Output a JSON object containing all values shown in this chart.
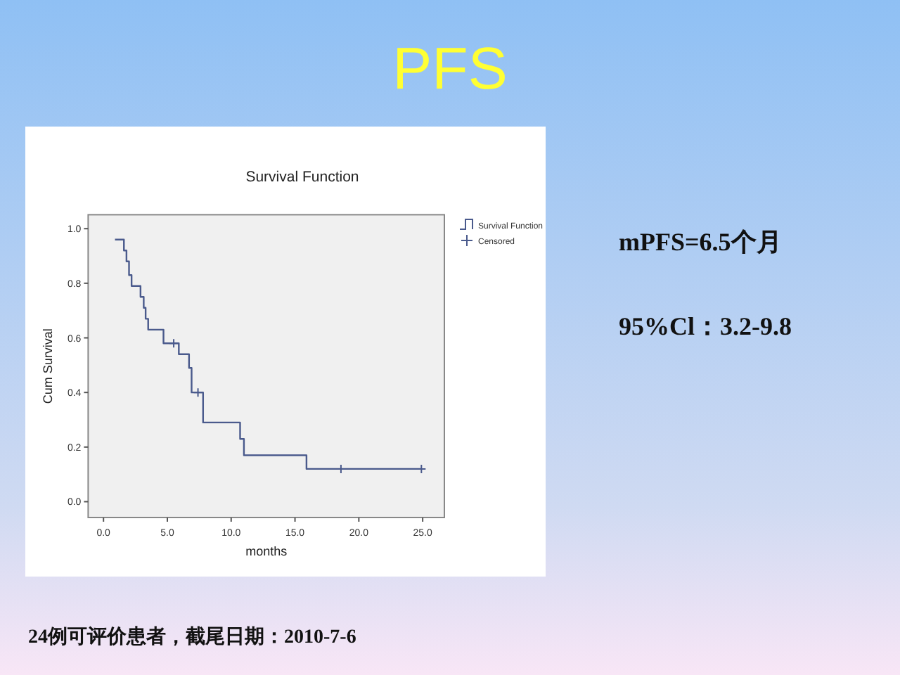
{
  "chart_data": {
    "type": "step",
    "title": "PFS",
    "subtitle": "Survival Function",
    "xlabel": "months",
    "ylabel": "Cum Survival",
    "xlim": [
      -1.2,
      26.7
    ],
    "ylim": [
      -0.058,
      1.051
    ],
    "xticks": [
      {
        "value": 0,
        "label": "0.0"
      },
      {
        "value": 5,
        "label": "5.0"
      },
      {
        "value": 10,
        "label": "10.0"
      },
      {
        "value": 15,
        "label": "15.0"
      },
      {
        "value": 20,
        "label": "20.0"
      },
      {
        "value": 25,
        "label": "25.0"
      }
    ],
    "yticks": [
      {
        "value": 0,
        "label": "0.0"
      },
      {
        "value": 0.2,
        "label": "0.2"
      },
      {
        "value": 0.4,
        "label": "0.4"
      },
      {
        "value": 0.6,
        "label": "0.6"
      },
      {
        "value": 0.8,
        "label": "0.8"
      },
      {
        "value": 1,
        "label": "1.0"
      }
    ],
    "series": [
      {
        "name": "Survival Function",
        "color": "#4a5a8c",
        "x": [
          0.9,
          1.6,
          1.8,
          2.0,
          2.2,
          2.9,
          3.15,
          3.3,
          3.5,
          4.7,
          5.9,
          6.7,
          6.9,
          7.8,
          10.7,
          11.0,
          15.9,
          24.9
        ],
        "values": [
          0.96,
          0.92,
          0.88,
          0.83,
          0.79,
          0.75,
          0.71,
          0.67,
          0.63,
          0.58,
          0.54,
          0.49,
          0.4,
          0.29,
          0.23,
          0.17,
          0.12,
          0.12
        ]
      },
      {
        "name": "Censored",
        "type": "scatter",
        "marker": "cross",
        "color": "#4a5a8c",
        "x": [
          5.5,
          7.4,
          18.6,
          24.9
        ],
        "values": [
          0.58,
          0.4,
          0.12,
          0.12
        ]
      }
    ],
    "legend": "right",
    "grid": false,
    "annotations": [
      "mPFS=6.5个月",
      "95%Cl：3.2-9.8",
      "24例可评价患者，截尾日期：2010-7-6"
    ]
  }
}
